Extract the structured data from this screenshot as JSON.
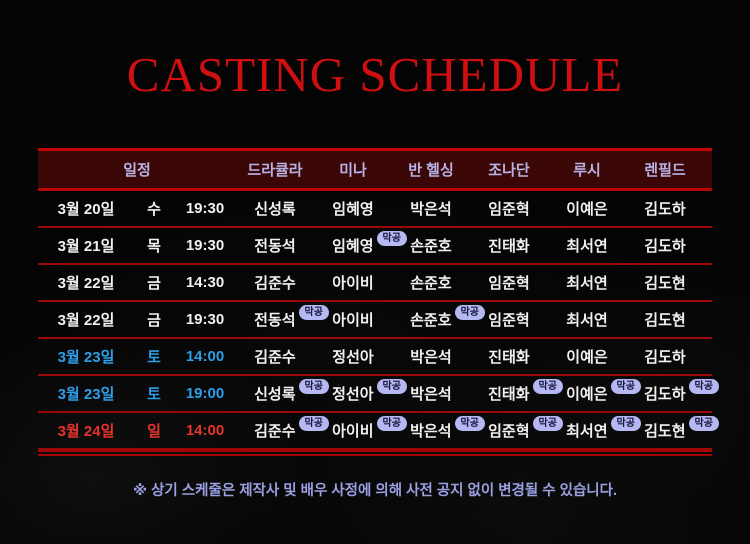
{
  "title": "CASTING SCHEDULE",
  "table": {
    "headers": [
      "일정",
      "드라큘라",
      "미나",
      "반 헬싱",
      "조나단",
      "루시",
      "렌필드"
    ],
    "badge_label": "막공",
    "rows": [
      {
        "date": "3월 20일",
        "day": "수",
        "time": "19:30",
        "color": "white",
        "cast": [
          {
            "name": "신성록",
            "badge": false
          },
          {
            "name": "임혜영",
            "badge": false
          },
          {
            "name": "박은석",
            "badge": false
          },
          {
            "name": "임준혁",
            "badge": false
          },
          {
            "name": "이예은",
            "badge": false
          },
          {
            "name": "김도하",
            "badge": false
          }
        ]
      },
      {
        "date": "3월 21일",
        "day": "목",
        "time": "19:30",
        "color": "white",
        "cast": [
          {
            "name": "전동석",
            "badge": false
          },
          {
            "name": "임혜영",
            "badge": true
          },
          {
            "name": "손준호",
            "badge": false
          },
          {
            "name": "진태화",
            "badge": false
          },
          {
            "name": "최서연",
            "badge": false
          },
          {
            "name": "김도하",
            "badge": false
          }
        ]
      },
      {
        "date": "3월 22일",
        "day": "금",
        "time": "14:30",
        "color": "white",
        "cast": [
          {
            "name": "김준수",
            "badge": false
          },
          {
            "name": "아이비",
            "badge": false
          },
          {
            "name": "손준호",
            "badge": false
          },
          {
            "name": "임준혁",
            "badge": false
          },
          {
            "name": "최서연",
            "badge": false
          },
          {
            "name": "김도현",
            "badge": false
          }
        ]
      },
      {
        "date": "3월 22일",
        "day": "금",
        "time": "19:30",
        "color": "white",
        "cast": [
          {
            "name": "전동석",
            "badge": true
          },
          {
            "name": "아이비",
            "badge": false
          },
          {
            "name": "손준호",
            "badge": true
          },
          {
            "name": "임준혁",
            "badge": false
          },
          {
            "name": "최서연",
            "badge": false
          },
          {
            "name": "김도현",
            "badge": false
          }
        ]
      },
      {
        "date": "3월 23일",
        "day": "토",
        "time": "14:00",
        "color": "blue",
        "cast": [
          {
            "name": "김준수",
            "badge": false
          },
          {
            "name": "정선아",
            "badge": false
          },
          {
            "name": "박은석",
            "badge": false
          },
          {
            "name": "진태화",
            "badge": false
          },
          {
            "name": "이예은",
            "badge": false
          },
          {
            "name": "김도하",
            "badge": false
          }
        ]
      },
      {
        "date": "3월 23일",
        "day": "토",
        "time": "19:00",
        "color": "blue",
        "cast": [
          {
            "name": "신성록",
            "badge": true
          },
          {
            "name": "정선아",
            "badge": true
          },
          {
            "name": "박은석",
            "badge": false
          },
          {
            "name": "진태화",
            "badge": true
          },
          {
            "name": "이예은",
            "badge": true
          },
          {
            "name": "김도하",
            "badge": true
          }
        ]
      },
      {
        "date": "3월 24일",
        "day": "일",
        "time": "14:00",
        "color": "red",
        "cast": [
          {
            "name": "김준수",
            "badge": true
          },
          {
            "name": "아이비",
            "badge": true
          },
          {
            "name": "박은석",
            "badge": true
          },
          {
            "name": "임준혁",
            "badge": true
          },
          {
            "name": "최서연",
            "badge": true
          },
          {
            "name": "김도현",
            "badge": true
          }
        ]
      }
    ]
  },
  "footnote": "※ 상기 스케줄은 제작사 및 배우 사정에 의해 사전 공지 없이 변경될 수 있습니다.",
  "colors": {
    "title_red": "#cf0f10",
    "line_red": "#a30505",
    "header_bg": "#3b0606",
    "header_text": "#b7b2e6",
    "row_text": "#f1f1f1",
    "highlight_blue": "#2d9fe8",
    "highlight_red": "#e5342a",
    "badge_bg": "#b5b8f3",
    "badge_text": "#15173d",
    "footnote_text": "#9ba0e2"
  }
}
